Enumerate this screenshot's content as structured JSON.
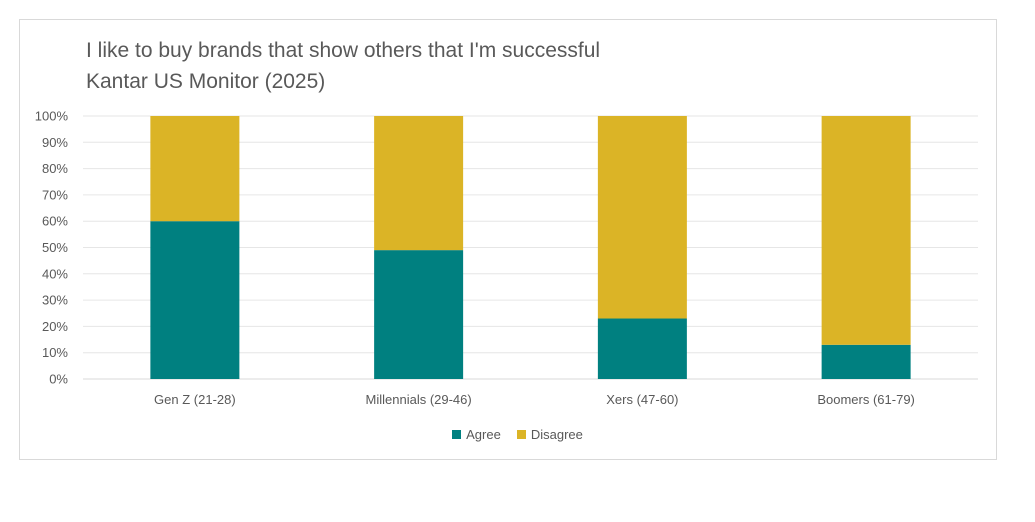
{
  "title": {
    "line1": "I like to buy brands that show others that I'm successful",
    "line2": "Kantar US Monitor (2025)"
  },
  "chart_data": {
    "type": "bar",
    "stacked": true,
    "categories": [
      "Gen Z (21-28)",
      "Millennials (29-46)",
      "Xers (47-60)",
      "Boomers (61-79)"
    ],
    "series": [
      {
        "name": "Agree",
        "values": [
          60,
          49,
          23,
          13
        ],
        "color": "#008080"
      },
      {
        "name": "Disagree",
        "values": [
          40,
          51,
          77,
          87
        ],
        "color": "#dbb426"
      }
    ],
    "title": "I like to buy brands that show others that I'm successful",
    "subtitle": "Kantar US Monitor (2025)",
    "ylim": [
      0,
      100
    ],
    "yticks": [
      "0%",
      "10%",
      "20%",
      "30%",
      "40%",
      "50%",
      "60%",
      "70%",
      "80%",
      "90%",
      "100%"
    ],
    "grid": true,
    "legend_position": "bottom"
  },
  "legend": {
    "agree_label": "Agree",
    "disagree_label": "Disagree"
  }
}
